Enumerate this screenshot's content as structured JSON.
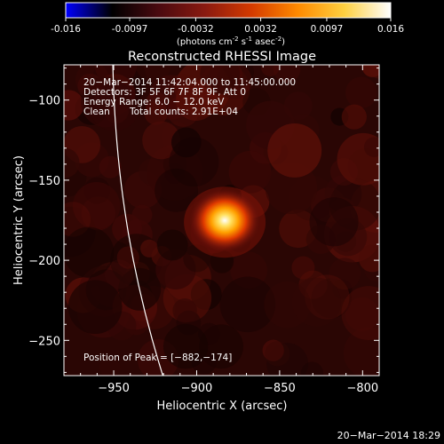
{
  "colorbar": {
    "min": -0.016,
    "max": 0.016,
    "tick_values": [
      -0.016,
      -0.0097,
      -0.0032,
      0.0032,
      0.0097,
      0.016
    ],
    "tick_labels": [
      "-0.016",
      "-0.0097",
      "-0.0032",
      "0.0032",
      "0.0097",
      "0.016"
    ],
    "units_prefix": "(photons cm",
    "units_exp1": "-2",
    "units_mid1": " s",
    "units_exp2": "-1",
    "units_mid2": " asec",
    "units_exp3": "-2",
    "units_suffix": ")",
    "colors": [
      "#0000ff",
      "#000000",
      "#4a0a10",
      "#8a1a10",
      "#d43a00",
      "#ff8a00",
      "#ffd040",
      "#ffffff"
    ]
  },
  "plot": {
    "title": "Reconstructed RHESSI Image",
    "xlabel": "Heliocentric X (arcsec)",
    "ylabel": "Heliocentric Y (arcsec)",
    "xlim": [
      -980,
      -790
    ],
    "ylim": [
      -272,
      -78
    ],
    "xticks": [
      -950,
      -900,
      -850,
      -800
    ],
    "yticks": [
      -100,
      -150,
      -200,
      -250
    ],
    "xtick_labels": [
      "−950",
      "−900",
      "−850",
      "−800"
    ],
    "ytick_labels": [
      "−100",
      "−150",
      "−200",
      "−250"
    ]
  },
  "annotations": {
    "time_range": "20−Mar−2014 11:42:04.000 to 11:45:00.000",
    "detectors": "Detectors: 3F 5F 6F 7F 8F 9F, Att 0",
    "energy": "Energy Range: 6.0 − 12.0 keV",
    "clean_label": "Clean",
    "total_counts": "Total counts: 2.91E+04",
    "peak_position": "Position of Peak = [−882,−174]"
  },
  "peak": {
    "x": -882,
    "y": -174
  },
  "footer": {
    "timestamp": "20−Mar−2014 18:29"
  }
}
